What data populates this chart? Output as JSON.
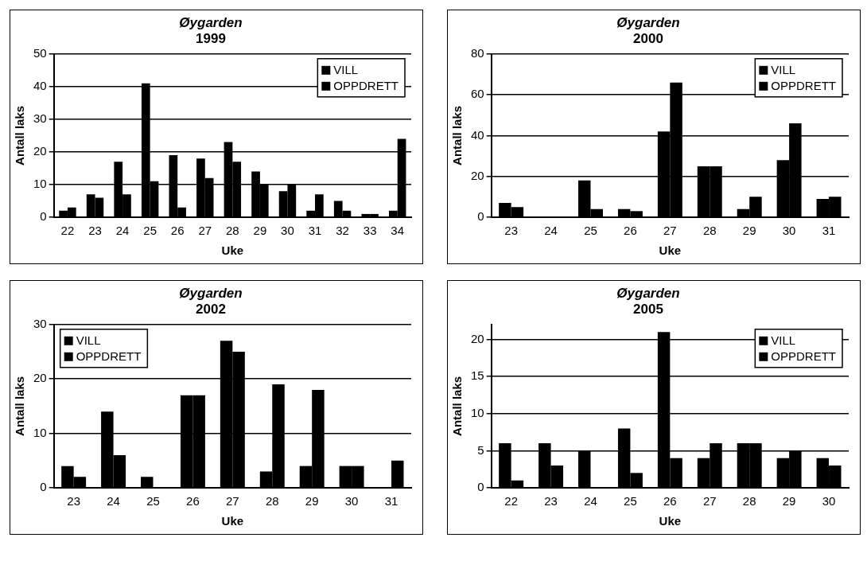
{
  "chart_data": [
    {
      "type": "bar",
      "title": "Øygarden",
      "subtitle": "1999",
      "xlabel": "Uke",
      "ylabel": "Antall laks",
      "categories": [
        "22",
        "23",
        "24",
        "25",
        "26",
        "27",
        "28",
        "29",
        "30",
        "31",
        "32",
        "33",
        "34"
      ],
      "series": [
        {
          "name": "VILL",
          "color": "#000000",
          "values": [
            2,
            7,
            17,
            41,
            19,
            18,
            23,
            14,
            8,
            2,
            5,
            1,
            2
          ]
        },
        {
          "name": "OPPDRETT",
          "color": "#000000",
          "values": [
            3,
            6,
            7,
            11,
            3,
            12,
            17,
            10,
            10,
            7,
            2,
            1,
            24
          ]
        }
      ],
      "ylim": [
        0,
        50
      ],
      "yticks": [
        0,
        10,
        20,
        30,
        40,
        50
      ],
      "grid": "y",
      "legend": "top right"
    },
    {
      "type": "bar",
      "title": "Øygarden",
      "subtitle": "2000",
      "xlabel": "Uke",
      "ylabel": "Antall laks",
      "categories": [
        "23",
        "24",
        "25",
        "26",
        "27",
        "28",
        "29",
        "30",
        "31"
      ],
      "series": [
        {
          "name": "VILL",
          "color": "#000000",
          "values": [
            7,
            0,
            18,
            4,
            42,
            25,
            4,
            28,
            9
          ]
        },
        {
          "name": "OPPDRETT",
          "color": "#000000",
          "values": [
            5,
            0,
            4,
            3,
            66,
            25,
            10,
            46,
            10
          ]
        }
      ],
      "ylim": [
        0,
        80
      ],
      "yticks": [
        0,
        20,
        40,
        60,
        80
      ],
      "grid": "y",
      "legend": "top right"
    },
    {
      "type": "bar",
      "title": "Øygarden",
      "subtitle": "2002",
      "xlabel": "Uke",
      "ylabel": "Antall laks",
      "categories": [
        "23",
        "24",
        "25",
        "26",
        "27",
        "28",
        "29",
        "30",
        "31"
      ],
      "series": [
        {
          "name": "VILL",
          "color": "#000000",
          "values": [
            4,
            14,
            2,
            17,
            27,
            3,
            4,
            4,
            0
          ]
        },
        {
          "name": "OPPDRETT",
          "color": "#000000",
          "values": [
            2,
            6,
            0,
            17,
            25,
            19,
            18,
            4,
            5
          ]
        }
      ],
      "ylim": [
        0,
        30
      ],
      "yticks": [
        0,
        10,
        20,
        30
      ],
      "grid": "y",
      "legend": "top left"
    },
    {
      "type": "bar",
      "title": "Øygarden",
      "subtitle": "2005",
      "xlabel": "Uke",
      "ylabel": "Antall laks",
      "categories": [
        "22",
        "23",
        "24",
        "25",
        "26",
        "27",
        "28",
        "29",
        "30"
      ],
      "series": [
        {
          "name": "VILL",
          "color": "#000000",
          "values": [
            6,
            6,
            5,
            8,
            21,
            4,
            6,
            4,
            4
          ]
        },
        {
          "name": "OPPDRETT",
          "color": "#000000",
          "values": [
            1,
            3,
            0,
            2,
            4,
            6,
            6,
            5,
            3
          ]
        }
      ],
      "ylim": [
        0,
        22
      ],
      "yticks": [
        0,
        5,
        10,
        15,
        20
      ],
      "grid": "y",
      "legend": "top right"
    }
  ]
}
